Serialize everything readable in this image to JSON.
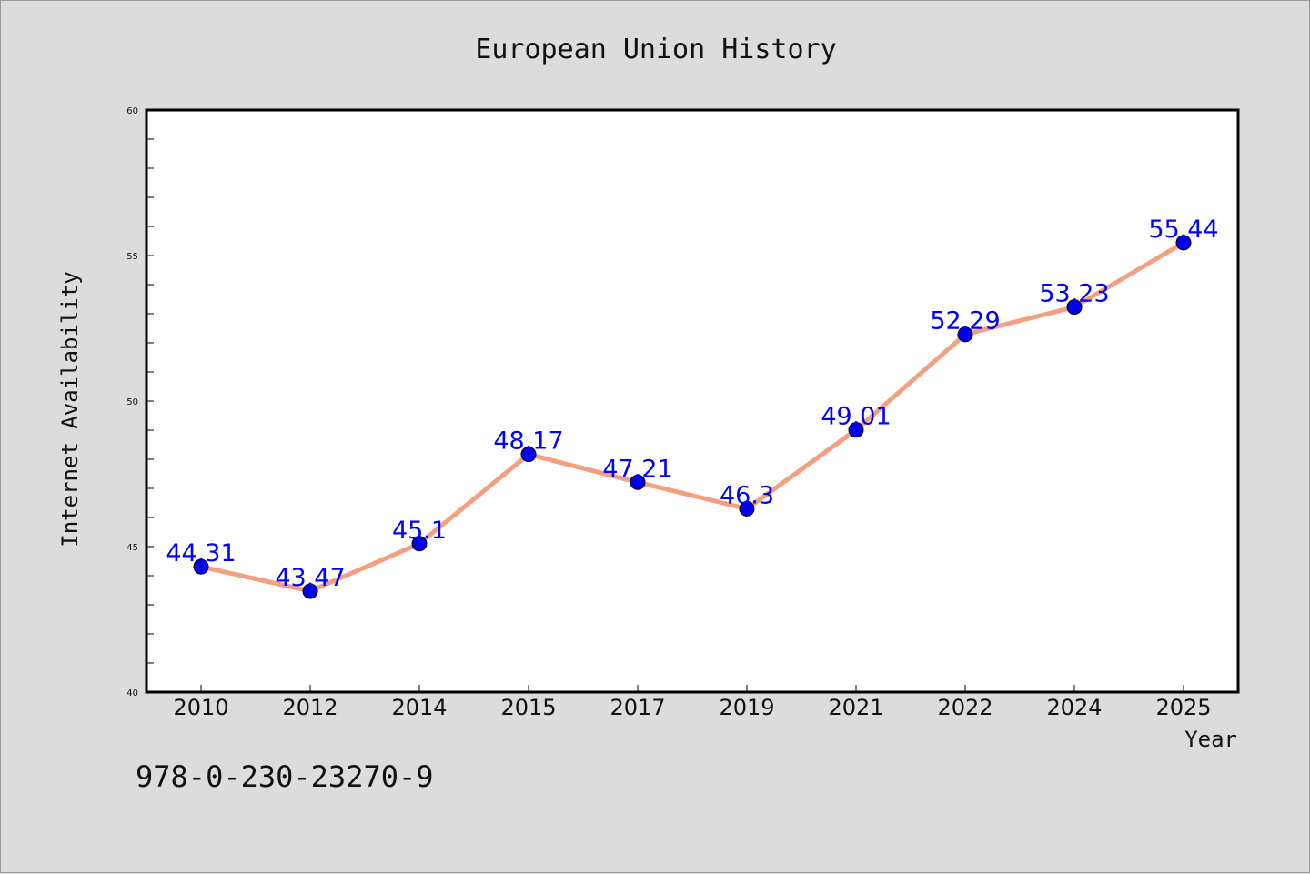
{
  "chart_data": {
    "type": "line",
    "title": "European Union History",
    "xlabel": "Year",
    "ylabel": "Internet Availability",
    "categories": [
      "2010",
      "2012",
      "2014",
      "2015",
      "2017",
      "2019",
      "2021",
      "2022",
      "2024",
      "2025"
    ],
    "series": [
      {
        "values": [
          44.31,
          43.47,
          45.1,
          48.17,
          47.21,
          46.3,
          49.01,
          52.29,
          53.23,
          55.44
        ],
        "labels": [
          "44.31",
          "43.47",
          "45.1",
          "48.17",
          "47.21",
          "46.3",
          "49.01",
          "52.29",
          "53.23",
          "55.44"
        ],
        "line_color": "#f4a080",
        "marker_color": "#0000ee",
        "label_color": "#0000ff"
      }
    ],
    "ylim": [
      40,
      60
    ],
    "yticks": [
      "40",
      "45",
      "50",
      "55",
      "60"
    ],
    "grid": false,
    "legend": "none"
  },
  "footer": {
    "isbn": "978-0-230-23270-9"
  }
}
